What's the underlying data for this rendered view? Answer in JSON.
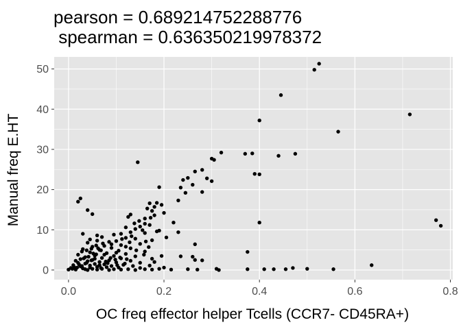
{
  "chart_data": {
    "type": "scatter",
    "title_lines": [
      "pearson = 0.689214752288776",
      " spearman = 0.636350219978372"
    ],
    "xlabel": "OC freq effector helper Tcells (CCR7- CD45RA+)",
    "ylabel": "Manual freq E.HT",
    "xlim": [
      -0.03,
      0.805
    ],
    "ylim": [
      -2.4,
      53.0
    ],
    "x_ticks": [
      0.0,
      0.2,
      0.4,
      0.6,
      0.8
    ],
    "x_tick_labels": [
      "0.0",
      "0.2",
      "0.4",
      "0.6",
      "0.8"
    ],
    "y_ticks": [
      0,
      10,
      20,
      30,
      40,
      50
    ],
    "y_tick_labels": [
      "0",
      "10",
      "20",
      "30",
      "40",
      "50"
    ],
    "grid": true,
    "legend": "none",
    "colors": {
      "panel": "#e5e5e5",
      "grid": "#ffffff",
      "point": "#000000",
      "tick": "#4d4d4d"
    },
    "points": [
      [
        0.525,
        51.3
      ],
      [
        0.515,
        49.8
      ],
      [
        0.445,
        43.5
      ],
      [
        0.715,
        38.7
      ],
      [
        0.4,
        37.2
      ],
      [
        0.565,
        34.4
      ],
      [
        0.32,
        29.2
      ],
      [
        0.37,
        28.9
      ],
      [
        0.385,
        29.0
      ],
      [
        0.475,
        28.9
      ],
      [
        0.44,
        28.4
      ],
      [
        0.3,
        27.7
      ],
      [
        0.305,
        27.4
      ],
      [
        0.145,
        26.8
      ],
      [
        0.28,
        24.9
      ],
      [
        0.265,
        24.5
      ],
      [
        0.39,
        23.9
      ],
      [
        0.4,
        23.8
      ],
      [
        0.29,
        22.8
      ],
      [
        0.25,
        22.9
      ],
      [
        0.24,
        22.4
      ],
      [
        0.3,
        22.1
      ],
      [
        0.26,
        21.2
      ],
      [
        0.235,
        20.5
      ],
      [
        0.19,
        20.6
      ],
      [
        0.28,
        19.4
      ],
      [
        0.245,
        19.2
      ],
      [
        0.23,
        17.3
      ],
      [
        0.02,
        17.0
      ],
      [
        0.025,
        17.8
      ],
      [
        0.17,
        16.6
      ],
      [
        0.185,
        16.7
      ],
      [
        0.195,
        16.2
      ],
      [
        0.18,
        15.7
      ],
      [
        0.04,
        14.9
      ],
      [
        0.05,
        13.9
      ],
      [
        0.175,
        14.7
      ],
      [
        0.165,
        15.3
      ],
      [
        0.2,
        14.2
      ],
      [
        0.13,
        13.8
      ],
      [
        0.125,
        13.2
      ],
      [
        0.18,
        13.6
      ],
      [
        0.16,
        12.8
      ],
      [
        0.22,
        11.8
      ],
      [
        0.4,
        11.8
      ],
      [
        0.77,
        12.4
      ],
      [
        0.78,
        11.0
      ],
      [
        0.16,
        11.5
      ],
      [
        0.17,
        11.2
      ],
      [
        0.15,
        10.8
      ],
      [
        0.12,
        10.6
      ],
      [
        0.14,
        10.2
      ],
      [
        0.19,
        9.8
      ],
      [
        0.13,
        9.4
      ],
      [
        0.16,
        9.2
      ],
      [
        0.23,
        9.4
      ],
      [
        0.11,
        9.0
      ],
      [
        0.03,
        9.0
      ],
      [
        0.06,
        8.6
      ],
      [
        0.095,
        8.8
      ],
      [
        0.07,
        8.2
      ],
      [
        0.12,
        8.0
      ],
      [
        0.14,
        7.8
      ],
      [
        0.175,
        7.4
      ],
      [
        0.1,
        7.2
      ],
      [
        0.085,
        7.0
      ],
      [
        0.06,
        7.3
      ],
      [
        0.04,
        6.8
      ],
      [
        0.15,
        6.5
      ],
      [
        0.265,
        6.4
      ],
      [
        0.11,
        6.2
      ],
      [
        0.075,
        6.0
      ],
      [
        0.05,
        5.8
      ],
      [
        0.09,
        5.5
      ],
      [
        0.13,
        5.4
      ],
      [
        0.03,
        5.2
      ],
      [
        0.065,
        5.0
      ],
      [
        0.105,
        4.8
      ],
      [
        0.16,
        4.6
      ],
      [
        0.375,
        4.5
      ],
      [
        0.045,
        4.4
      ],
      [
        0.08,
        4.2
      ],
      [
        0.12,
        4.0
      ],
      [
        0.02,
        3.8
      ],
      [
        0.055,
        3.6
      ],
      [
        0.095,
        3.5
      ],
      [
        0.14,
        3.4
      ],
      [
        0.195,
        3.5
      ],
      [
        0.235,
        3.4
      ],
      [
        0.26,
        3.3
      ],
      [
        0.035,
        3.2
      ],
      [
        0.07,
        3.0
      ],
      [
        0.11,
        2.9
      ],
      [
        0.175,
        2.8
      ],
      [
        0.265,
        2.5
      ],
      [
        0.28,
        2.4
      ],
      [
        0.025,
        2.7
      ],
      [
        0.05,
        2.5
      ],
      [
        0.085,
        2.4
      ],
      [
        0.13,
        2.3
      ],
      [
        0.04,
        2.2
      ],
      [
        0.065,
        2.0
      ],
      [
        0.1,
        1.9
      ],
      [
        0.15,
        1.8
      ],
      [
        0.18,
        2.0
      ],
      [
        0.02,
        1.8
      ],
      [
        0.035,
        1.6
      ],
      [
        0.055,
        1.5
      ],
      [
        0.075,
        1.4
      ],
      [
        0.115,
        1.3
      ],
      [
        0.01,
        1.2
      ],
      [
        0.045,
        1.1
      ],
      [
        0.09,
        1.0
      ],
      [
        0.135,
        1.0
      ],
      [
        0.17,
        1.1
      ],
      [
        0.635,
        1.2
      ],
      [
        0.025,
        0.9
      ],
      [
        0.06,
        0.8
      ],
      [
        0.08,
        0.7
      ],
      [
        0.105,
        0.6
      ],
      [
        0.15,
        0.5
      ],
      [
        0.2,
        0.6
      ],
      [
        0.47,
        0.5
      ],
      [
        0.005,
        0.5
      ],
      [
        0.03,
        0.4
      ],
      [
        0.05,
        0.3
      ],
      [
        0.07,
        0.3
      ],
      [
        0.095,
        0.2
      ],
      [
        0.125,
        0.2
      ],
      [
        0.16,
        0.2
      ],
      [
        0.19,
        0.3
      ],
      [
        0.25,
        0.2
      ],
      [
        0.31,
        0.3
      ],
      [
        0.375,
        0.2
      ],
      [
        0.41,
        0.2
      ],
      [
        0.43,
        0.2
      ],
      [
        0.455,
        0.2
      ],
      [
        0.5,
        0.3
      ],
      [
        0.555,
        0.2
      ],
      [
        0.0,
        0.1
      ],
      [
        0.015,
        0.1
      ],
      [
        0.04,
        0.0
      ],
      [
        0.06,
        0.1
      ],
      [
        0.085,
        0.0
      ],
      [
        0.11,
        0.1
      ],
      [
        0.14,
        0.0
      ],
      [
        0.175,
        0.1
      ],
      [
        0.215,
        0.1
      ],
      [
        0.315,
        0.0
      ],
      [
        0.27,
        0.1
      ],
      [
        0.035,
        0.2
      ],
      [
        0.045,
        0.6
      ],
      [
        0.065,
        1.2
      ],
      [
        0.055,
        2.8
      ],
      [
        0.015,
        2.3
      ],
      [
        0.075,
        3.8
      ],
      [
        0.09,
        6.4
      ],
      [
        0.1,
        4.3
      ],
      [
        0.12,
        5.8
      ],
      [
        0.045,
        7.6
      ],
      [
        0.028,
        4.6
      ],
      [
        0.068,
        4.9
      ],
      [
        0.082,
        1.7
      ],
      [
        0.098,
        2.6
      ],
      [
        0.108,
        3.1
      ],
      [
        0.118,
        1.6
      ],
      [
        0.128,
        6.9
      ],
      [
        0.142,
        4.9
      ],
      [
        0.158,
        3.8
      ],
      [
        0.168,
        5.7
      ],
      [
        0.185,
        9.6
      ],
      [
        0.205,
        8.1
      ],
      [
        0.012,
        0.7
      ],
      [
        0.022,
        1.4
      ],
      [
        0.032,
        2.9
      ],
      [
        0.042,
        3.3
      ],
      [
        0.052,
        4.1
      ],
      [
        0.062,
        5.4
      ],
      [
        0.072,
        6.6
      ],
      [
        0.078,
        2.1
      ],
      [
        0.088,
        3.0
      ],
      [
        0.102,
        1.2
      ],
      [
        0.112,
        7.7
      ],
      [
        0.122,
        2.7
      ],
      [
        0.132,
        8.4
      ],
      [
        0.138,
        11.6
      ],
      [
        0.148,
        12.2
      ],
      [
        0.155,
        9.9
      ],
      [
        0.162,
        7.1
      ],
      [
        0.172,
        13.0
      ],
      [
        0.008,
        0.3
      ],
      [
        0.018,
        0.6
      ],
      [
        0.028,
        1.0
      ],
      [
        0.038,
        1.8
      ],
      [
        0.048,
        2.4
      ],
      [
        0.058,
        3.9
      ],
      [
        0.068,
        0.5
      ],
      [
        0.038,
        4.9
      ],
      [
        0.058,
        6.1
      ],
      [
        0.048,
        5.3
      ]
    ]
  }
}
